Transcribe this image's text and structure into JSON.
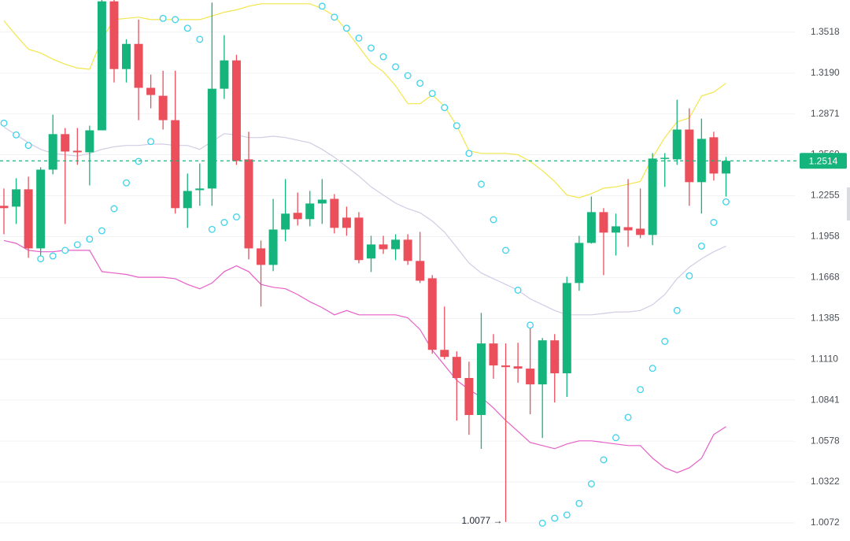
{
  "chart_data": {
    "type": "candlestick",
    "log_scale": true,
    "grid": true,
    "ylim": [
      0.9963,
      1.3781
    ],
    "yticks": [
      1.3518,
      {
        "value": 1.319,
        "label": "1.3190"
      },
      1.2871,
      {
        "value": 1.256,
        "label": "1.2560"
      },
      1.2255,
      1.1958,
      1.1668,
      1.1385,
      {
        "value": 1.111,
        "label": "1.1110"
      },
      1.0841,
      1.0578,
      1.0322,
      1.0072
    ],
    "up_color": "#14b47c",
    "down_color": "#ea4f5b",
    "open": [
      1.2181,
      1.2175,
      1.2302,
      1.1874,
      1.2448,
      1.2716,
      1.259,
      1.2578,
      1.2745,
      1.377,
      1.3222,
      1.3423,
      1.3074,
      1.3012,
      1.2823,
      1.2164,
      1.2296,
      1.2308,
      1.3067,
      1.3291,
      1.2525,
      1.1874,
      1.1757,
      1.2009,
      1.213,
      1.2084,
      1.2198,
      1.2232,
      1.2095,
      1.2095,
      1.1802,
      1.1902,
      1.1868,
      1.1936,
      1.1785,
      1.1663,
      1.1173,
      1.1126,
      1.0986,
      1.0745,
      1.1216,
      1.1069,
      1.1063,
      1.1048,
      1.0944,
      1.1237,
      1.1017,
      1.163,
      1.1913,
      1.2135,
      1.1987,
      1.2026,
      1.2015,
      1.197,
      1.2531,
      1.2525,
      1.2751,
      1.2355,
      1.2692,
      1.2419
    ],
    "high": [
      1.2308,
      1.2384,
      1.2396,
      1.2466,
      1.2865,
      1.2763,
      1.2763,
      1.2781,
      1.38,
      1.379,
      1.3461,
      1.362,
      1.3178,
      1.3209,
      1.3209,
      1.2419,
      1.2495,
      1.376,
      1.3493,
      1.3335,
      1.2734,
      1.193,
      1.2232,
      1.2378,
      1.2278,
      1.229,
      1.2378,
      1.2267,
      1.2175,
      1.2135,
      1.1964,
      1.1964,
      1.1975,
      1.1975,
      1.1992,
      1.1685,
      1.1467,
      1.1163,
      1.1094,
      1.1423,
      1.1279,
      1.1216,
      1.1221,
      1.1359,
      1.1253,
      1.1279,
      1.1674,
      1.1964,
      1.2249,
      1.2164,
      1.2124,
      1.2378,
      1.2308,
      1.2572,
      1.2572,
      1.2981,
      1.2914,
      1.2835,
      1.2734,
      1.2543
    ],
    "low": [
      1.1975,
      1.2049,
      1.1807,
      1.1823,
      1.2413,
      1.2049,
      1.2484,
      1.2331,
      1.2745,
      1.3116,
      1.3116,
      1.2823,
      1.2914,
      1.2751,
      1.2124,
      1.2021,
      1.2181,
      1.2181,
      1.2987,
      1.2484,
      1.1796,
      1.1467,
      1.1713,
      1.1924,
      1.2038,
      1.2032,
      1.2049,
      1.1981,
      1.1964,
      1.1768,
      1.1707,
      1.1835,
      1.1791,
      1.1757,
      1.163,
      1.1147,
      1.111,
      1.0709,
      1.0618,
      1.0529,
      1.0981,
      1.0077,
      1.0955,
      1.075,
      1.0598,
      1.0826,
      1.0862,
      1.1576,
      1.1908,
      1.1685,
      1.1823,
      1.1885,
      1.1947,
      1.1897,
      1.232,
      1.2484,
      1.2181,
      1.2124,
      1.2367,
      1.2249
    ],
    "close": [
      1.2164,
      1.2302,
      1.1874,
      1.2448,
      1.2716,
      1.2584,
      1.2578,
      1.2745,
      1.377,
      1.3222,
      1.3423,
      1.3074,
      1.3018,
      1.2823,
      1.2164,
      1.229,
      1.2308,
      1.3067,
      1.3291,
      1.2513,
      1.1874,
      1.1757,
      1.2009,
      1.2124,
      1.2084,
      1.2198,
      1.2226,
      1.2021,
      1.2021,
      1.1791,
      1.1902,
      1.1868,
      1.1936,
      1.1785,
      1.1646,
      1.1173,
      1.1126,
      1.0986,
      1.0745,
      1.1216,
      1.1069,
      1.1058,
      1.1048,
      1.0944,
      1.1237,
      1.1017,
      1.163,
      1.1913,
      1.2135,
      1.1987,
      1.2032,
      1.2003,
      1.197,
      1.2531,
      1.2537,
      1.2751,
      1.2355,
      1.268,
      1.2419,
      1.2514
    ],
    "overlays": [
      {
        "color": "#f2e64b",
        "values": [
          1.361,
          1.349,
          1.338,
          1.335,
          1.33,
          1.326,
          1.323,
          1.322,
          1.346,
          1.362,
          1.363,
          1.364,
          1.362,
          1.362,
          1.362,
          1.362,
          1.362,
          1.365,
          1.368,
          1.37,
          1.373,
          1.375,
          1.375,
          1.375,
          1.375,
          1.375,
          1.371,
          1.365,
          1.353,
          1.34,
          1.327,
          1.32,
          1.309,
          1.295,
          1.295,
          1.302,
          1.293,
          1.278,
          1.259,
          1.257,
          1.257,
          1.257,
          1.256,
          1.251,
          1.244,
          1.236,
          1.226,
          1.224,
          1.227,
          1.231,
          1.232,
          1.234,
          1.236,
          1.254,
          1.269,
          1.281,
          1.284,
          1.301,
          1.304,
          1.311
        ]
      },
      {
        "color": "#d3cbe3",
        "values": [
          1.277,
          1.271,
          1.265,
          1.26,
          1.257,
          1.256,
          1.255,
          1.257,
          1.26,
          1.262,
          1.263,
          1.263,
          1.264,
          1.264,
          1.263,
          1.263,
          1.26,
          1.266,
          1.272,
          1.271,
          1.269,
          1.269,
          1.27,
          1.269,
          1.267,
          1.265,
          1.26,
          1.254,
          1.247,
          1.24,
          1.232,
          1.226,
          1.22,
          1.216,
          1.213,
          1.207,
          1.199,
          1.188,
          1.177,
          1.17,
          1.166,
          1.162,
          1.158,
          1.152,
          1.148,
          1.144,
          1.141,
          1.141,
          1.141,
          1.142,
          1.143,
          1.143,
          1.144,
          1.148,
          1.155,
          1.166,
          1.174,
          1.18,
          1.185,
          1.189
        ]
      },
      {
        "color": "#e65fc8",
        "values": [
          1.193,
          1.191,
          1.186,
          1.185,
          1.185,
          1.186,
          1.186,
          1.186,
          1.171,
          1.17,
          1.169,
          1.167,
          1.167,
          1.167,
          1.166,
          1.162,
          1.159,
          1.163,
          1.171,
          1.175,
          1.171,
          1.162,
          1.16,
          1.159,
          1.155,
          1.15,
          1.146,
          1.141,
          1.144,
          1.141,
          1.141,
          1.141,
          1.141,
          1.139,
          1.131,
          1.117,
          1.107,
          1.097,
          1.091,
          1.086,
          1.079,
          1.071,
          1.064,
          1.057,
          1.055,
          1.053,
          1.056,
          1.058,
          1.058,
          1.057,
          1.056,
          1.055,
          1.055,
          1.047,
          1.041,
          1.038,
          1.041,
          1.047,
          1.062,
          1.067
        ]
      }
    ],
    "sar": {
      "color": "#3cd2ea",
      "values": [
        1.28,
        1.271,
        1.263,
        1.18,
        1.182,
        1.186,
        1.19,
        1.194,
        1.2,
        1.216,
        1.235,
        1.251,
        1.266,
        1.363,
        1.362,
        1.355,
        1.346,
        1.201,
        1.206,
        1.21,
        null,
        null,
        null,
        null,
        null,
        null,
        1.373,
        1.364,
        1.355,
        1.347,
        1.339,
        1.332,
        1.324,
        1.317,
        1.311,
        1.303,
        1.292,
        1.278,
        1.257,
        1.234,
        1.208,
        1.186,
        1.158,
        1.134,
        1.007,
        1.01,
        1.012,
        1.019,
        1.031,
        1.046,
        1.06,
        1.073,
        1.091,
        1.105,
        1.123,
        1.144,
        1.168,
        1.189,
        1.206,
        1.221
      ]
    },
    "last_price": {
      "value": 1.2514,
      "label": "1.2514",
      "color": "#14b47c"
    },
    "annotation": {
      "text": "1.0077 →",
      "index": 41
    }
  }
}
